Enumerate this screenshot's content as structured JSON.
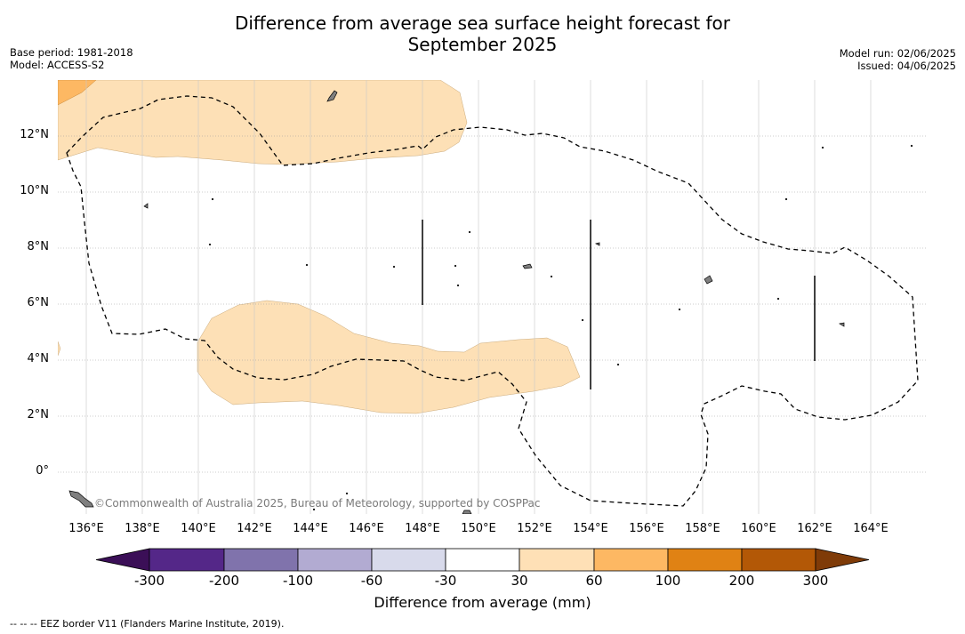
{
  "header": {
    "title_line1": "Difference from average sea surface height forecast for",
    "title_line2": "September 2025",
    "base_period": "Base period: 1981-2018",
    "model": "Model: ACCESS-S2",
    "model_run": "Model run: 02/06/2025",
    "issued": "Issued: 04/06/2025"
  },
  "map": {
    "region": "Western Pacific",
    "lon_labels": [
      "136°E",
      "138°E",
      "140°E",
      "142°E",
      "144°E",
      "146°E",
      "148°E",
      "150°E",
      "152°E",
      "154°E",
      "156°E",
      "158°E",
      "160°E",
      "162°E",
      "164°E"
    ],
    "lat_labels": [
      "12°N",
      "10°N",
      "8°N",
      "6°N",
      "4°N",
      "2°N",
      "0°"
    ],
    "copyright": "©Commonwealth of Australia 2025, Bureau of Meteorology, supported by COSPPac",
    "anomaly_fill_color": "#fde0b6",
    "land_color": "#7f7f7f"
  },
  "colorbar": {
    "title": "Difference from average (mm)",
    "tick_labels": [
      "-300",
      "-200",
      "-100",
      "-60",
      "-30",
      "30",
      "60",
      "100",
      "200",
      "300"
    ],
    "colors": [
      "#3b0f57",
      "#542788",
      "#8073ac",
      "#b2abd2",
      "#d8daeb",
      "#ffffff",
      "#fee0b6",
      "#fdb863",
      "#e08214",
      "#b35806",
      "#7f3b08"
    ]
  },
  "footer": {
    "eez_note": "--  --  -- EEZ border V11 (Flanders Marine Institute, 2019)."
  }
}
